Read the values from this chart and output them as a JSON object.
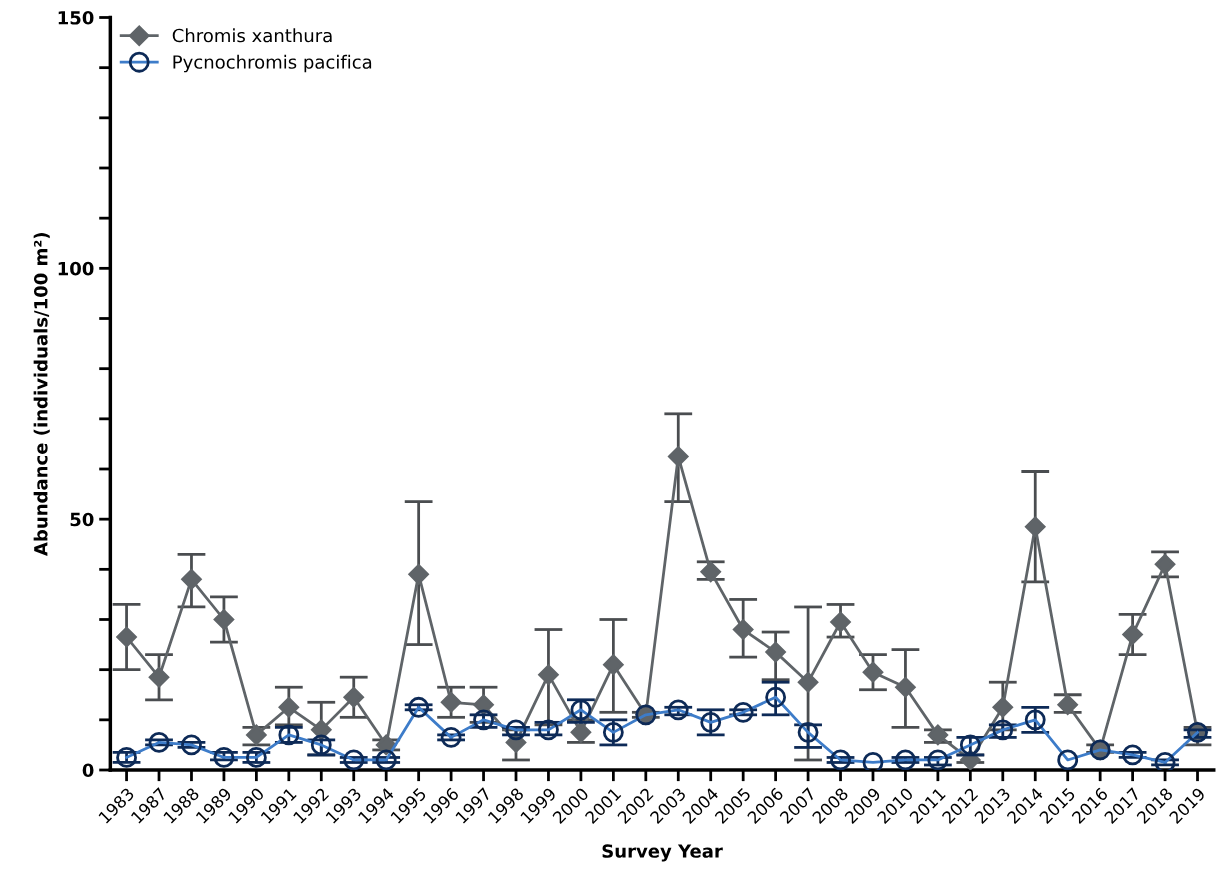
{
  "chart_data": {
    "type": "line",
    "xlabel": "Survey Year",
    "ylabel": "Abundance (individuals/100 m²)",
    "categories": [
      "1983",
      "1987",
      "1988",
      "1989",
      "1990",
      "1991",
      "1992",
      "1993",
      "1994",
      "1995",
      "1996",
      "1997",
      "1998",
      "1999",
      "2000",
      "2001",
      "2002",
      "2003",
      "2004",
      "2005",
      "2006",
      "2007",
      "2008",
      "2009",
      "2010",
      "2011",
      "2012",
      "2013",
      "2014",
      "2015",
      "2016",
      "2017",
      "2018",
      "2019"
    ],
    "series": [
      {
        "name": "Chromis xanthura",
        "color": "#5f6468",
        "marker": "diamond",
        "values": [
          26.5,
          18.5,
          38,
          30,
          7,
          12.5,
          8,
          14.5,
          5,
          39,
          13.5,
          13,
          5.5,
          19,
          7.5,
          21,
          11,
          62.5,
          39.5,
          28,
          23.5,
          17.5,
          29.5,
          19.5,
          16.5,
          7,
          2,
          12.5,
          48.5,
          13,
          4,
          27,
          41,
          7.5
        ],
        "errors": [
          [
            20,
            33
          ],
          [
            14,
            23
          ],
          [
            32.5,
            43
          ],
          [
            25.5,
            34.5
          ],
          [
            5,
            8.5
          ],
          [
            9,
            16.5
          ],
          [
            3,
            13.5
          ],
          [
            10.5,
            18.5
          ],
          [
            4,
            6
          ],
          [
            25,
            53.5
          ],
          [
            10.5,
            16.5
          ],
          [
            9.5,
            16.5
          ],
          [
            2,
            8
          ],
          [
            9,
            28
          ],
          [
            5.5,
            10
          ],
          [
            11.5,
            30
          ],
          [
            10.5,
            11.5
          ],
          [
            53.5,
            71
          ],
          [
            38,
            41.5
          ],
          [
            22.5,
            34
          ],
          [
            18,
            27.5
          ],
          [
            2,
            32.5
          ],
          [
            26.5,
            33
          ],
          [
            16,
            23
          ],
          [
            8.5,
            24
          ],
          [
            5.5,
            8
          ],
          [
            1.5,
            3
          ],
          [
            8,
            17.5
          ],
          [
            37.5,
            59.5
          ],
          [
            11.5,
            15
          ],
          [
            3.5,
            5
          ],
          [
            23,
            31
          ],
          [
            38.5,
            43.5
          ],
          [
            5,
            8.5
          ]
        ]
      },
      {
        "name": "Pycnochromis pacifica",
        "color": "#3d7cc9",
        "marker": "circle",
        "values": [
          2.5,
          5.5,
          5,
          2.5,
          2.5,
          7,
          5,
          2,
          2,
          12.5,
          6.5,
          10,
          8,
          8,
          12,
          7.5,
          11,
          12,
          9.5,
          11.5,
          14.5,
          7.5,
          2,
          1.5,
          2,
          2,
          5,
          8,
          10,
          2,
          4,
          3,
          1.5,
          7.5
        ],
        "errors": [
          [
            1.5,
            3.5
          ],
          [
            5,
            6
          ],
          [
            4.5,
            5.5
          ],
          [
            2,
            3.5
          ],
          [
            1.5,
            3.5
          ],
          [
            5.5,
            8.5
          ],
          [
            3,
            6
          ],
          [
            1.5,
            2.5
          ],
          [
            1.5,
            2.5
          ],
          [
            12,
            13
          ],
          [
            6,
            7
          ],
          [
            8.5,
            11
          ],
          [
            7,
            8.5
          ],
          [
            7,
            9.5
          ],
          [
            9.5,
            14
          ],
          [
            5,
            10
          ],
          null,
          [
            11,
            12.5
          ],
          [
            7,
            12
          ],
          [
            11,
            12
          ],
          [
            11,
            17.5
          ],
          [
            4.5,
            9
          ],
          [
            1.5,
            2.5
          ],
          null,
          [
            1.5,
            2.5
          ],
          [
            1,
            2.5
          ],
          [
            3,
            6.5
          ],
          [
            6.5,
            9
          ],
          [
            7.5,
            12.5
          ],
          null,
          null,
          [
            2.5,
            3.5
          ],
          [
            1,
            2
          ],
          [
            6.5,
            8
          ]
        ]
      }
    ],
    "ylim": [
      0,
      150
    ],
    "yticks": [
      0,
      {
        "value": 10,
        "label": null
      },
      {
        "value": 20,
        "label": null
      },
      {
        "value": 30,
        "label": null
      },
      {
        "value": 40,
        "label": null
      },
      50,
      {
        "value": 60,
        "label": null
      },
      {
        "value": 70,
        "label": null
      },
      {
        "value": 80,
        "label": null
      },
      {
        "value": 90,
        "label": null
      },
      100,
      {
        "value": 110,
        "label": null
      },
      {
        "value": 120,
        "label": null
      },
      {
        "value": 130,
        "label": null
      },
      {
        "value": 140,
        "label": null
      },
      150
    ],
    "grid": false,
    "legend": "top left",
    "line_style": "solid"
  }
}
